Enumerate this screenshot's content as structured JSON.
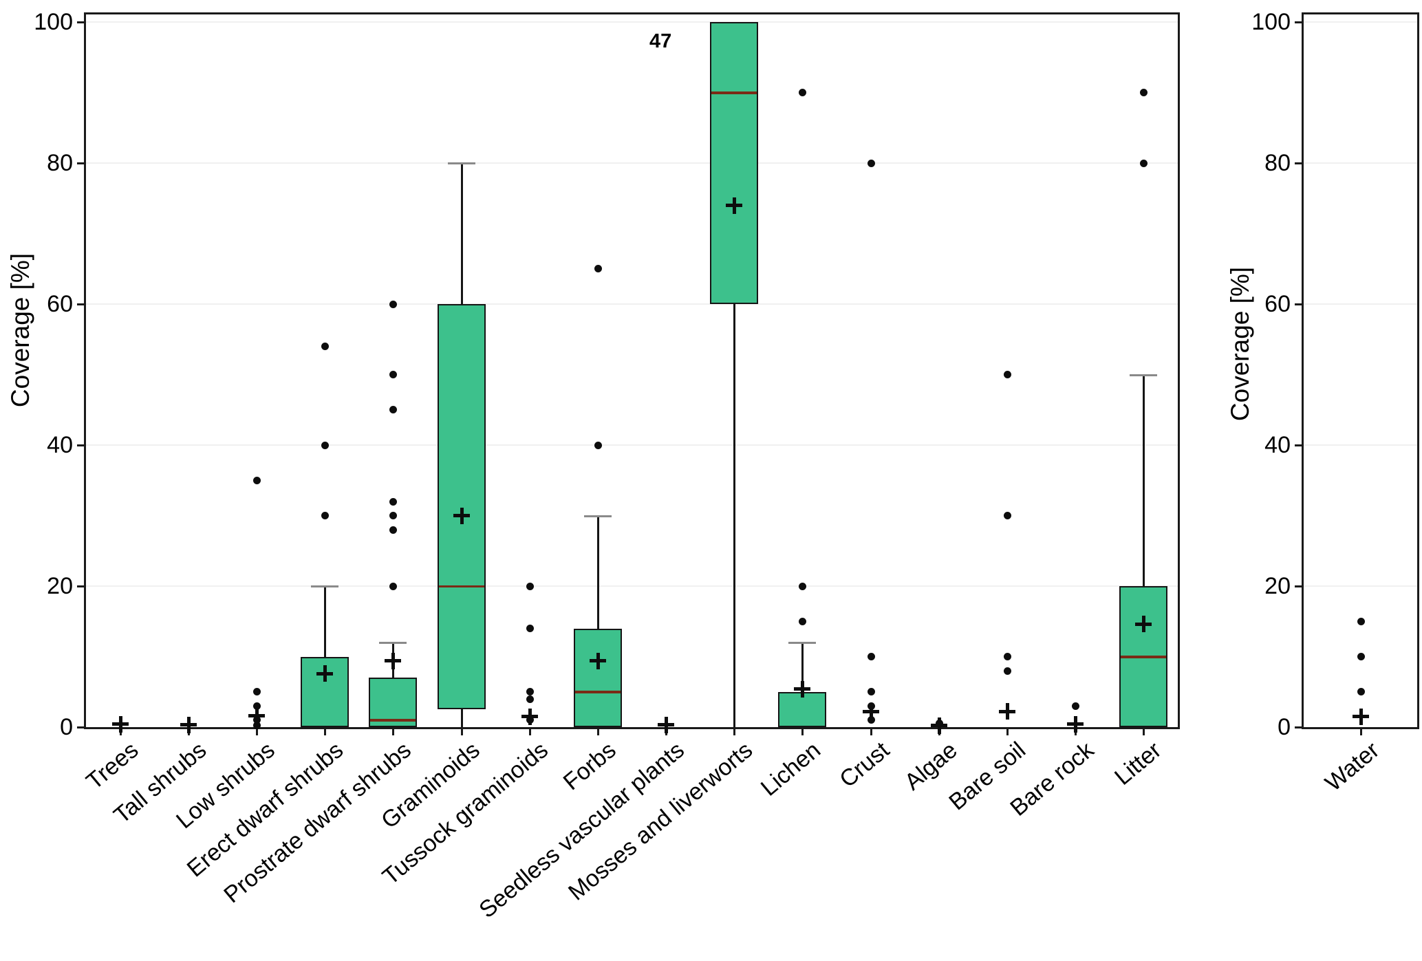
{
  "chart_data": {
    "type": "boxplot",
    "title": "",
    "ylabel": "Coverage [%]",
    "ylim": [
      0,
      100
    ],
    "yticks": [
      0,
      20,
      40,
      60,
      80,
      100
    ],
    "grid": "horizontal gridlines at each y tick",
    "legend": "none",
    "annotation": {
      "text": "47",
      "panel": "main",
      "near_category": "Mosses and liverworts",
      "value": 97,
      "side": "left-of-box"
    },
    "style": {
      "box_fill": "#3dc18c",
      "box_border": "#151515",
      "median_color": "#7a2b16",
      "whisker_color": "#151515",
      "whisker_cap_color": "#8a8a8a",
      "outlier_color": "#0d0d0d",
      "mean_marker": "+",
      "grid_color": "#f0f0f0"
    },
    "panels": [
      {
        "name": "main",
        "ylabel": "Coverage [%]",
        "categories": [
          {
            "label": "Trees",
            "q1": null,
            "q3": null,
            "median": 0,
            "whisker_low": null,
            "whisker_high": null,
            "mean": 0.4,
            "outliers": []
          },
          {
            "label": "Tall shrubs",
            "q1": null,
            "q3": null,
            "median": 0,
            "whisker_low": null,
            "whisker_high": null,
            "mean": 0.3,
            "outliers": []
          },
          {
            "label": "Low shrubs",
            "q1": null,
            "q3": null,
            "median": 0,
            "whisker_low": null,
            "whisker_high": null,
            "mean": 1.6,
            "outliers": [
              35,
              5,
              3,
              1,
              0.2
            ]
          },
          {
            "label": "Erect dwarf shrubs",
            "q1": 0,
            "q3": 10,
            "median": 0,
            "whisker_low": null,
            "whisker_high": 20,
            "mean": 7.6,
            "outliers": [
              54,
              40,
              30
            ]
          },
          {
            "label": "Prostrate dwarf shrubs",
            "q1": 0,
            "q3": 7,
            "median": 1,
            "whisker_low": null,
            "whisker_high": 12,
            "mean": 9.4,
            "outliers": [
              60,
              50,
              45,
              32,
              30,
              28,
              20
            ]
          },
          {
            "label": "Graminoids",
            "q1": 2.5,
            "q3": 60,
            "median": 20,
            "whisker_low": 0,
            "whisker_high": 80,
            "mean": 30,
            "outliers": []
          },
          {
            "label": "Tussock graminoids",
            "q1": null,
            "q3": null,
            "median": 0,
            "whisker_low": null,
            "whisker_high": null,
            "mean": 1.5,
            "outliers": [
              20,
              14,
              5,
              4,
              1
            ]
          },
          {
            "label": "Forbs",
            "q1": 0,
            "q3": 14,
            "median": 5,
            "whisker_low": null,
            "whisker_high": 30,
            "mean": 9.4,
            "outliers": [
              65,
              40
            ]
          },
          {
            "label": "Seedless vascular plants",
            "q1": null,
            "q3": null,
            "median": 0,
            "whisker_low": null,
            "whisker_high": null,
            "mean": 0.3,
            "outliers": []
          },
          {
            "label": "Mosses and liverworts",
            "q1": 60,
            "q3": 100,
            "median": 90,
            "whisker_low": 0,
            "whisker_high": null,
            "mean": 74,
            "outliers": []
          },
          {
            "label": "Lichen",
            "q1": 0,
            "q3": 5,
            "median": 0,
            "whisker_low": null,
            "whisker_high": 12,
            "mean": 5.4,
            "outliers": [
              90,
              20,
              15
            ]
          },
          {
            "label": "Crust",
            "q1": null,
            "q3": null,
            "median": 0,
            "whisker_low": null,
            "whisker_high": null,
            "mean": 2.2,
            "outliers": [
              80,
              10,
              5,
              3,
              1
            ]
          },
          {
            "label": "Algae",
            "q1": null,
            "q3": null,
            "median": 0,
            "whisker_low": null,
            "whisker_high": null,
            "mean": 0.2,
            "outliers": [
              0.5
            ]
          },
          {
            "label": "Bare soil",
            "q1": null,
            "q3": null,
            "median": 0,
            "whisker_low": null,
            "whisker_high": null,
            "mean": 2.2,
            "outliers": [
              50,
              30,
              10,
              8
            ]
          },
          {
            "label": "Bare rock",
            "q1": null,
            "q3": null,
            "median": 0,
            "whisker_low": null,
            "whisker_high": null,
            "mean": 0.4,
            "outliers": [
              3
            ]
          },
          {
            "label": "Litter",
            "q1": 0,
            "q3": 20,
            "median": 10,
            "whisker_low": null,
            "whisker_high": 50,
            "mean": 14.6,
            "outliers": [
              90,
              80
            ]
          }
        ]
      },
      {
        "name": "water",
        "ylabel": "Coverage [%]",
        "categories": [
          {
            "label": "Water",
            "q1": null,
            "q3": null,
            "median": 0,
            "whisker_low": null,
            "whisker_high": null,
            "mean": 1.5,
            "outliers": [
              15,
              10,
              5
            ]
          }
        ]
      }
    ]
  }
}
